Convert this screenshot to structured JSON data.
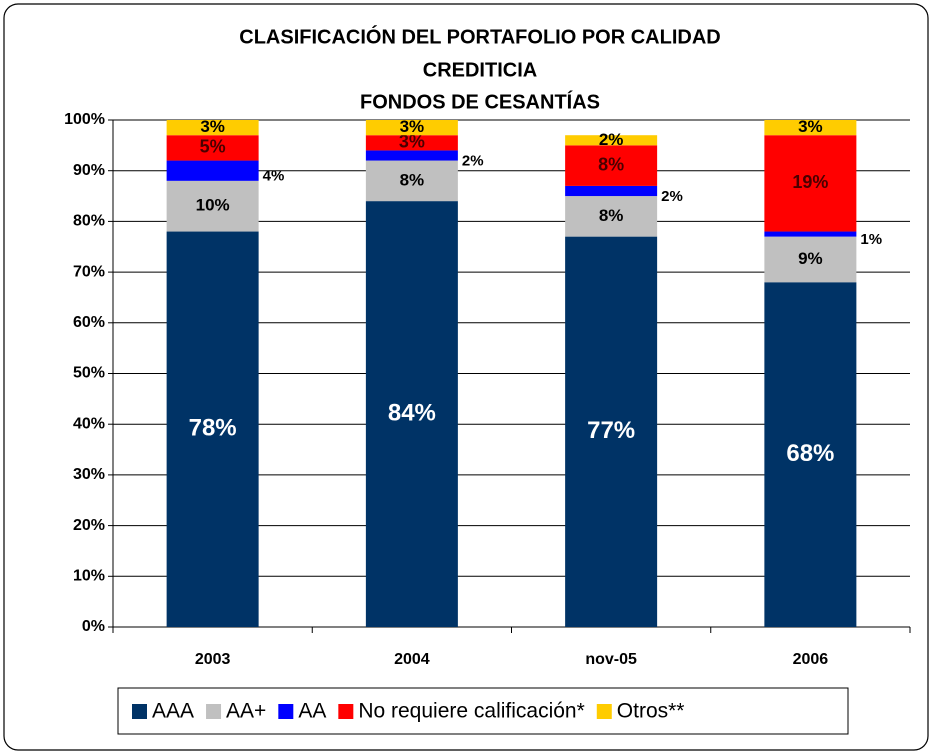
{
  "chart_data": {
    "type": "stacked_bar",
    "title": [
      "CLASIFICACIÓN DEL PORTAFOLIO POR CALIDAD",
      "CREDITICIA",
      "FONDOS DE CESANTÍAS"
    ],
    "categories": [
      "2003",
      "2004",
      "nov-05",
      "2006"
    ],
    "series": [
      {
        "name": "AAA",
        "color": "#003366",
        "values": [
          78,
          84,
          77,
          68
        ],
        "value_labels": [
          "78%",
          "84%",
          "77%",
          "68%"
        ]
      },
      {
        "name": "AA+",
        "color": "#c0c0c0",
        "values": [
          10,
          8,
          8,
          9
        ],
        "value_labels": [
          "10%",
          "8%",
          "8%",
          "9%"
        ]
      },
      {
        "name": "AA",
        "color": "#0000ff",
        "values": [
          4,
          2,
          2,
          1
        ],
        "value_labels": [
          "4%",
          "2%",
          "2%",
          "1%"
        ]
      },
      {
        "name": "No requiere calificación*",
        "color": "#ff0000",
        "values": [
          5,
          3,
          8,
          19
        ],
        "value_labels": [
          "5%",
          "3%",
          "8%",
          "19%"
        ]
      },
      {
        "name": "Otros**",
        "color": "#ffcc00",
        "values": [
          3,
          3,
          2,
          3
        ],
        "value_labels": [
          "3%",
          "3%",
          "2%",
          "3%"
        ]
      }
    ],
    "ylim": [
      0,
      100
    ],
    "yticks": [
      {
        "value": 0,
        "label": "0%"
      },
      {
        "value": 10,
        "label": "10%"
      },
      {
        "value": 20,
        "label": "20%"
      },
      {
        "value": 30,
        "label": "30%"
      },
      {
        "value": 40,
        "label": "40%"
      },
      {
        "value": 50,
        "label": "50%"
      },
      {
        "value": 60,
        "label": "60%"
      },
      {
        "value": 70,
        "label": "70%"
      },
      {
        "value": 80,
        "label": "80%"
      },
      {
        "value": 90,
        "label": "90%"
      },
      {
        "value": 100,
        "label": "100%"
      }
    ],
    "grid": true,
    "legend": "bottom"
  }
}
